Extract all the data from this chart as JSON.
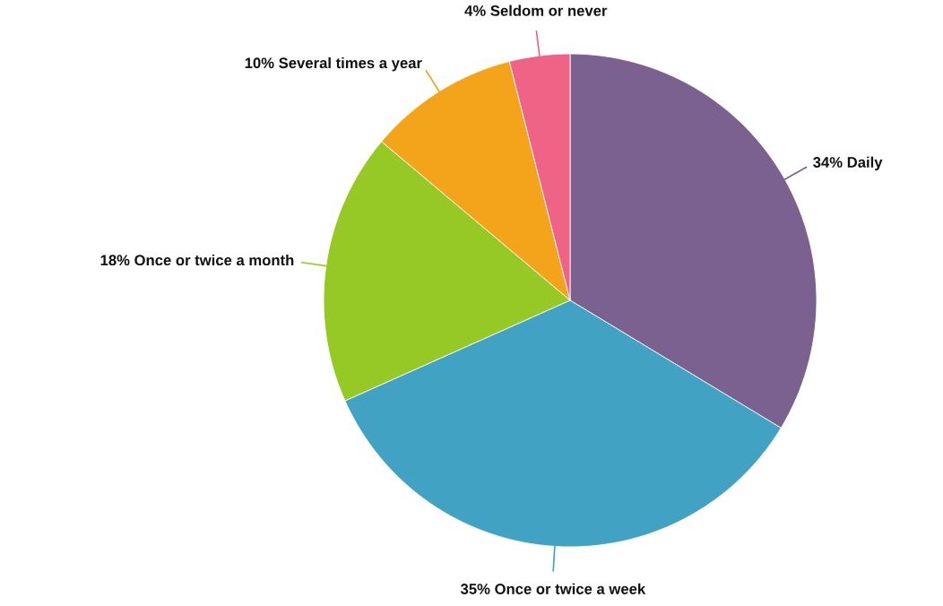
{
  "chart_data": {
    "type": "pie",
    "categories": [
      "Daily",
      "Once or twice a week",
      "Once or twice a month",
      "Several times a year",
      "Seldom or never"
    ],
    "values": [
      34,
      35,
      18,
      10,
      4
    ],
    "value_labels": [
      "34%",
      "35%",
      "18%",
      "10%",
      "4%"
    ],
    "colors": [
      "#7b6190",
      "#41a2c3",
      "#97c926",
      "#f4a41b",
      "#ef6486"
    ],
    "legend": false
  }
}
